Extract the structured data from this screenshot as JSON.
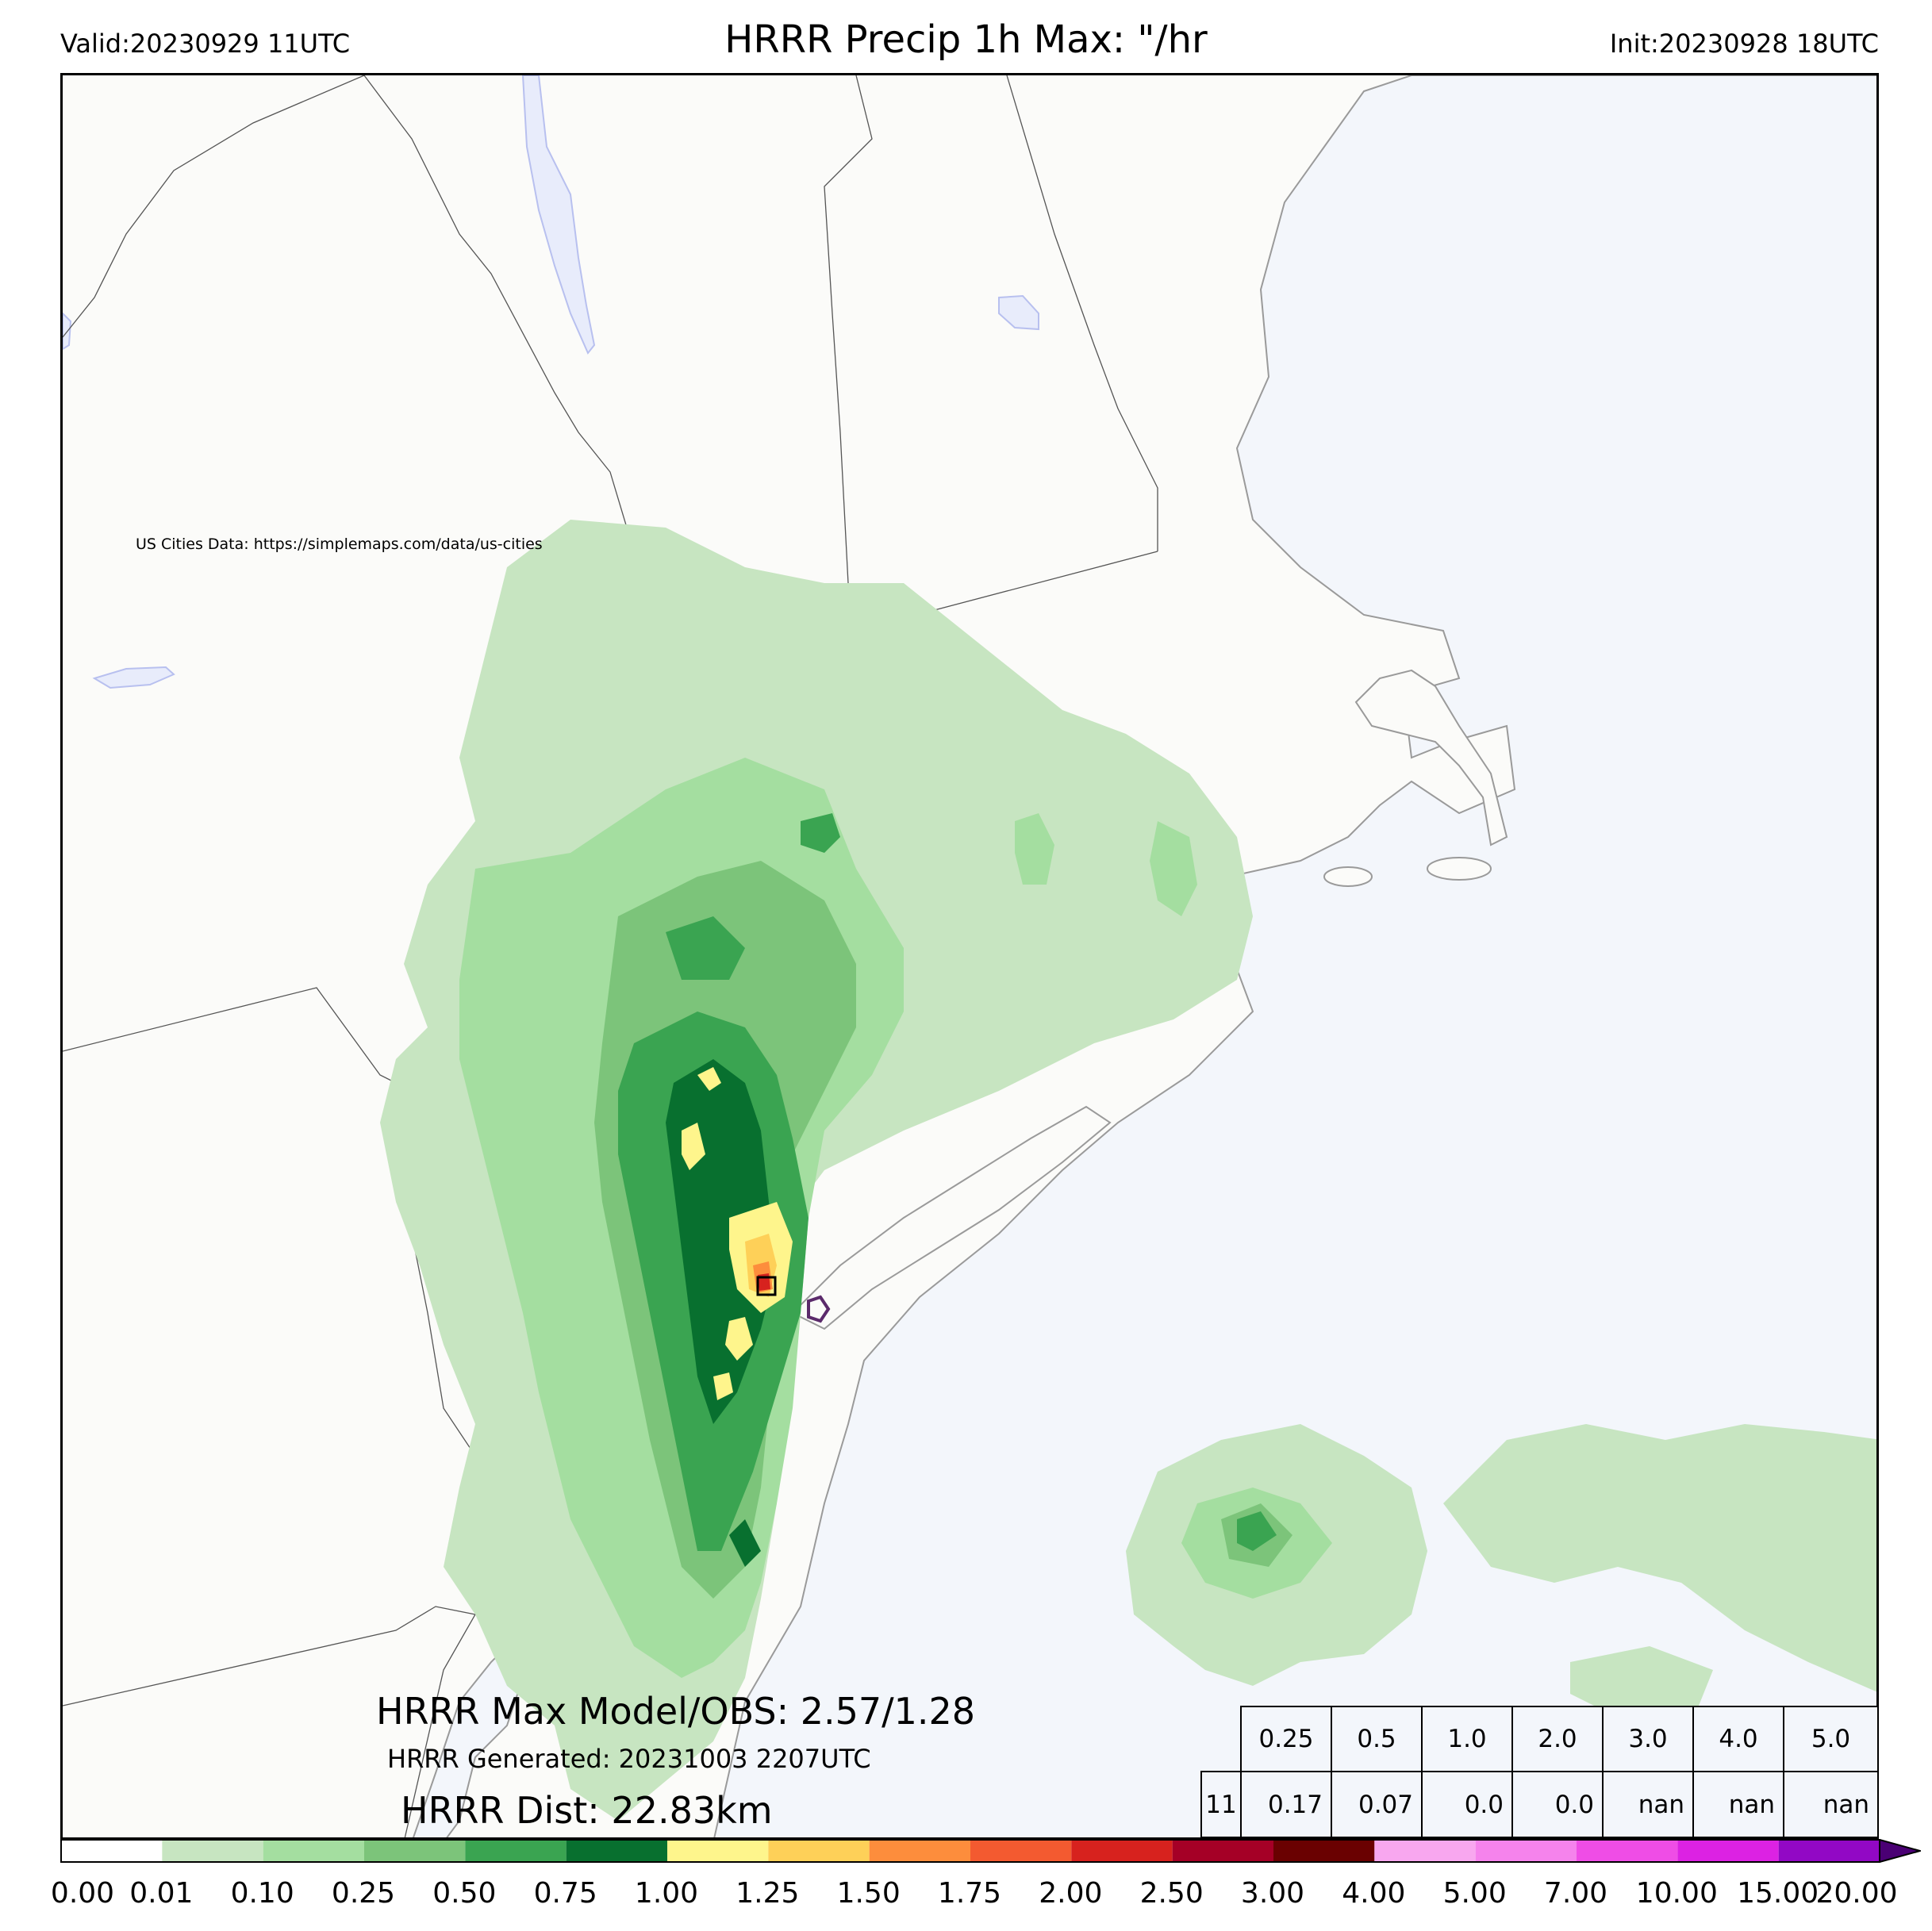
{
  "header": {
    "valid": "Valid:20230929 11UTC",
    "title": "HRRR Precip 1h Max: \"/hr",
    "init": "Init:20230928 18UTC"
  },
  "map": {
    "credit": "US Cities Data: https://simplemaps.com/data/us-cities",
    "colors": {
      "land": "#fbfbf9",
      "water": "#f3f6fb",
      "lake": "#e8ecfb",
      "boundary": "#555555",
      "coast": "#9a9a9a"
    }
  },
  "stats": {
    "max_line": "HRRR Max Model/OBS: 2.57/1.28",
    "generated": "HRRR Generated: 20231003 2207UTC",
    "dist": "HRRR Dist: 22.83km"
  },
  "table": {
    "thresholds": [
      "0.25",
      "0.5",
      "1.0",
      "2.0",
      "3.0",
      "4.0",
      "5.0"
    ],
    "row_label": "11",
    "values": [
      "0.17",
      "0.07",
      "0.0",
      "0.0",
      "nan",
      "nan",
      "nan"
    ]
  },
  "colorbar": {
    "ticks": [
      "0.00",
      "0.01",
      "0.10",
      "0.25",
      "0.50",
      "0.75",
      "1.00",
      "1.25",
      "1.50",
      "1.75",
      "2.00",
      "2.50",
      "3.00",
      "4.00",
      "5.00",
      "7.00",
      "10.00",
      "15.00",
      "20.00"
    ],
    "colors": [
      "#ffffff",
      "#c7e5c1",
      "#a4dea0",
      "#7cc47a",
      "#3aa451",
      "#08702f",
      "#fef58c",
      "#fed058",
      "#fd8d3c",
      "#f35a30",
      "#d7221e",
      "#a50026",
      "#6a0101",
      "#f8a7ef",
      "#f583ec",
      "#ef4de6",
      "#dc22e3",
      "#9208c5"
    ],
    "extend_color": "#4a0074"
  }
}
